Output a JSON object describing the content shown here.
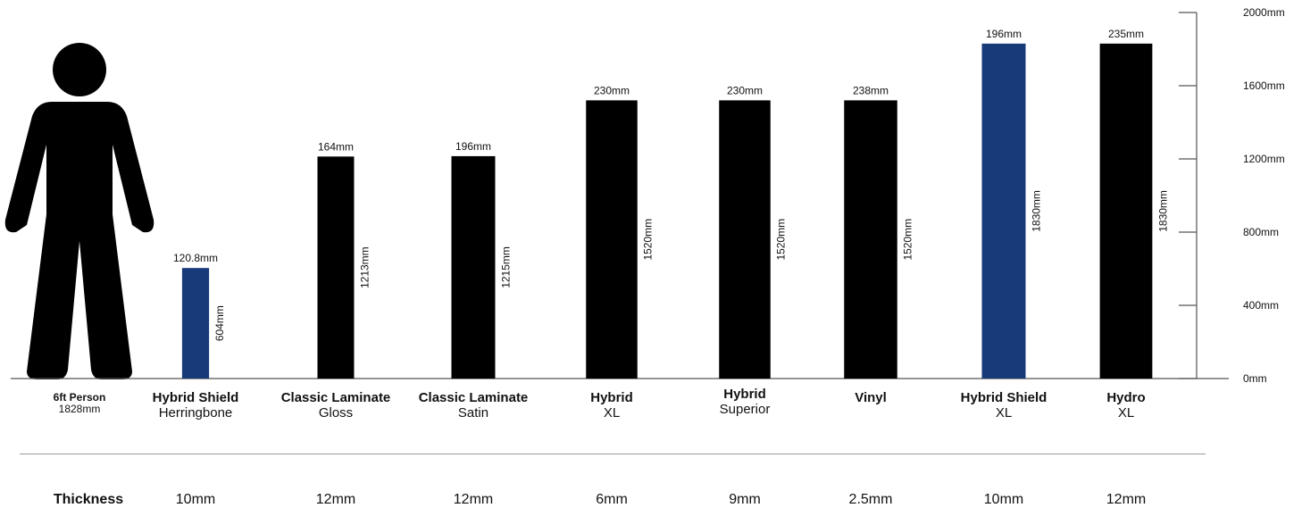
{
  "chart_data": {
    "type": "bar",
    "categories": [
      {
        "title": "Hybrid Shield",
        "subtitle": "Herringbone"
      },
      {
        "title": "Classic Laminate",
        "subtitle": "Gloss"
      },
      {
        "title": "Classic Laminate",
        "subtitle": "Satin"
      },
      {
        "title": "Hybrid",
        "subtitle": "XL"
      },
      {
        "title": "Hybrid",
        "subtitle": "Superior"
      },
      {
        "title": "Vinyl",
        "subtitle": ""
      },
      {
        "title": "Hybrid Shield",
        "subtitle": "XL"
      },
      {
        "title": "Hydro",
        "subtitle": "XL"
      }
    ],
    "lengths_mm": [
      604,
      1213,
      1215,
      1520,
      1520,
      1520,
      1830,
      1830
    ],
    "length_labels": [
      "604mm",
      "1213mm",
      "1215mm",
      "1520mm",
      "1520mm",
      "1520mm",
      "1830mm",
      "1830mm"
    ],
    "widths_mm": [
      120.8,
      164,
      196,
      230,
      230,
      238,
      196,
      235
    ],
    "width_labels": [
      "120.8mm",
      "164mm",
      "196mm",
      "230mm",
      "230mm",
      "238mm",
      "196mm",
      "235mm"
    ],
    "bar_colors": [
      "#173a78",
      "#000000",
      "#000000",
      "#000000",
      "#000000",
      "#000000",
      "#173a78",
      "#000000"
    ],
    "reference": {
      "title": "6ft Person",
      "subtitle": "1828mm",
      "height_mm": 1828,
      "icon": "person-icon"
    },
    "y_axis": {
      "ticks": [
        0,
        400,
        800,
        1200,
        1600,
        2000
      ],
      "tick_labels": [
        "0mm",
        "400mm",
        "800mm",
        "1200mm",
        "1600mm",
        "2000mm"
      ],
      "ylim": [
        0,
        2000
      ],
      "position": "right"
    },
    "thickness_row": {
      "label": "Thickness",
      "values": [
        "10mm",
        "12mm",
        "12mm",
        "6mm",
        "9mm",
        "2.5mm",
        "10mm",
        "12mm"
      ]
    },
    "grid": false,
    "legend": "none"
  }
}
